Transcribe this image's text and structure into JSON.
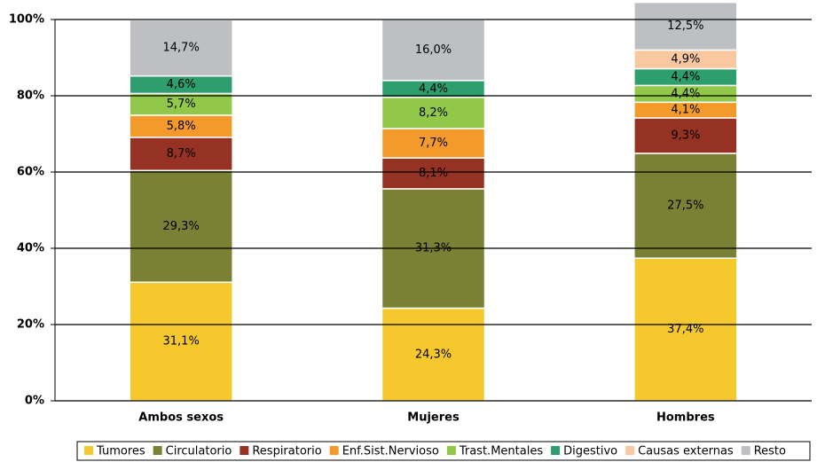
{
  "chart_data": {
    "type": "stacked-bar",
    "categories": [
      "Ambos sexos",
      "Mujeres",
      "Hombres"
    ],
    "series": [
      {
        "name": "Tumores",
        "color": "#f5c92e",
        "values": [
          31.1,
          24.3,
          37.4
        ],
        "value_labels": [
          "31,1%",
          "24,3%",
          "37,4%"
        ]
      },
      {
        "name": "Circulatorio",
        "color": "#7a8034",
        "values": [
          29.3,
          31.3,
          27.5
        ],
        "value_labels": [
          "29,3%",
          "31,3%",
          "27,5%"
        ]
      },
      {
        "name": "Respiratorio",
        "color": "#963224",
        "values": [
          8.7,
          8.1,
          9.3
        ],
        "value_labels": [
          "8,7%",
          "8,1%",
          "9,3%"
        ]
      },
      {
        "name": "Enf.Sist.Nervioso",
        "color": "#f39a2b",
        "values": [
          5.8,
          7.7,
          4.1
        ],
        "value_labels": [
          "5,8%",
          "7,7%",
          "4,1%"
        ]
      },
      {
        "name": "Trast.Mentales",
        "color": "#92c84a",
        "values": [
          5.7,
          8.2,
          4.4
        ],
        "value_labels": [
          "5,7%",
          "8,2%",
          "4,4%"
        ]
      },
      {
        "name": "Digestivo",
        "color": "#2e9e6e",
        "values": [
          4.6,
          4.4,
          4.4
        ],
        "value_labels": [
          "4,6%",
          "4,4%",
          "4,4%"
        ]
      },
      {
        "name": "Causas externas",
        "color": "#f9c8a0",
        "values": [
          null,
          null,
          4.9
        ],
        "value_labels": [
          null,
          null,
          "4,9%"
        ]
      },
      {
        "name": "Resto",
        "color": "#bdbfc3",
        "values": [
          14.7,
          16.0,
          12.5
        ],
        "value_labels": [
          "14,7%",
          "16,0%",
          "12,5%"
        ]
      }
    ],
    "ylim": [
      0,
      100
    ],
    "yticks": [
      {
        "value": 0,
        "label": "0%"
      },
      {
        "value": 20,
        "label": "20%"
      },
      {
        "value": 40,
        "label": "40%"
      },
      {
        "value": 60,
        "label": "60%"
      },
      {
        "value": 80,
        "label": "80%"
      },
      {
        "value": 100,
        "label": "100%"
      }
    ],
    "grid": true,
    "legend": "bottom"
  }
}
